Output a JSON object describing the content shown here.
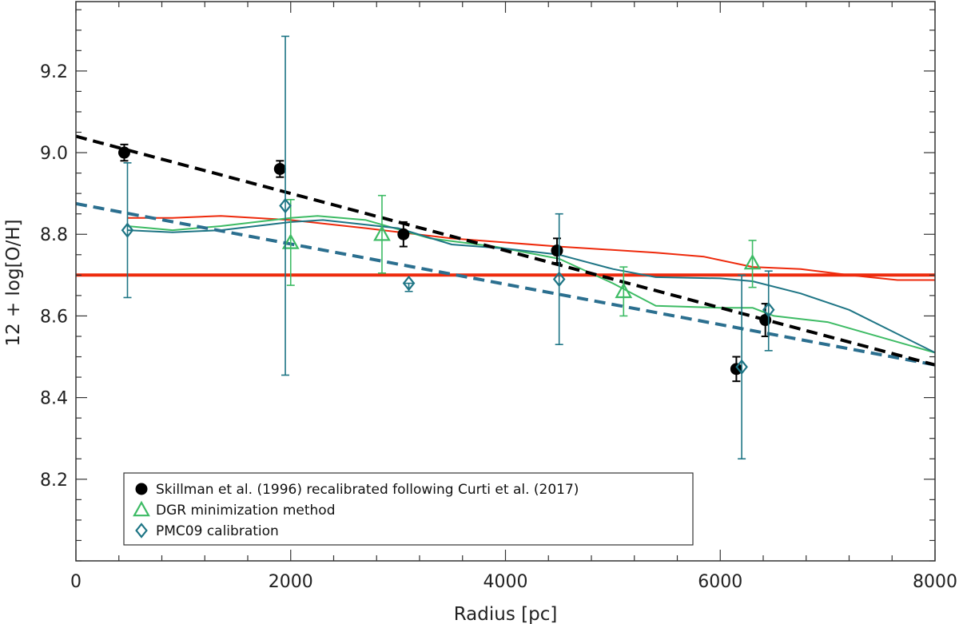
{
  "chart_data": {
    "type": "scatter",
    "xlabel": "Radius [pc]",
    "ylabel": "12 + log[O/H]",
    "xlim": [
      0,
      8000
    ],
    "ylim": [
      8.0,
      9.37
    ],
    "x_ticks": [
      0,
      2000,
      4000,
      6000,
      8000
    ],
    "x_tick_labels": [
      "0",
      "2000",
      "4000",
      "6000",
      "8000"
    ],
    "y_ticks": [
      8.2,
      8.4,
      8.6,
      8.8,
      9.0,
      9.2
    ],
    "y_tick_labels": [
      "8.2",
      "8.4",
      "8.6",
      "8.8",
      "9.0",
      "9.2"
    ],
    "legend_position": "bottom-left",
    "colors": {
      "black": "#000000",
      "green": "#3dbb64",
      "teal": "#1e7585",
      "red": "#ee2a0c",
      "dashed_blue": "#2b6f8f"
    },
    "series": [
      {
        "name": "Skillman et al. (1996) recalibrated following Curti et al. (2017)",
        "marker": "filled-circle",
        "color": "#000000",
        "points": [
          {
            "x": 450,
            "y": 9.0,
            "err": 0.02
          },
          {
            "x": 1900,
            "y": 8.96,
            "err": 0.02
          },
          {
            "x": 3050,
            "y": 8.8,
            "err": 0.03
          },
          {
            "x": 4480,
            "y": 8.76,
            "err": 0.03
          },
          {
            "x": 6150,
            "y": 8.47,
            "err": 0.03
          },
          {
            "x": 6420,
            "y": 8.59,
            "err": 0.04
          }
        ]
      },
      {
        "name": "DGR minimization method",
        "marker": "open-triangle",
        "color": "#3dbb64",
        "points": [
          {
            "x": 2000,
            "y": 8.78,
            "err_lo": 0.105,
            "err_hi": 0.105
          },
          {
            "x": 2850,
            "y": 8.8,
            "err_lo": 0.095,
            "err_hi": 0.095
          },
          {
            "x": 5100,
            "y": 8.66,
            "err_lo": 0.06,
            "err_hi": 0.06
          },
          {
            "x": 6300,
            "y": 8.73,
            "err_lo": 0.06,
            "err_hi": 0.055
          }
        ]
      },
      {
        "name": "PMC09 calibration",
        "marker": "open-diamond",
        "color": "#1e7585",
        "points": [
          {
            "x": 480,
            "y": 8.81,
            "err_lo": 0.165,
            "err_hi": 0.165
          },
          {
            "x": 1950,
            "y": 8.87,
            "err_lo": 0.415,
            "err_hi": 0.415
          },
          {
            "x": 3100,
            "y": 8.68,
            "err_lo": 0.02,
            "err_hi": 0.0
          },
          {
            "x": 4500,
            "y": 8.69,
            "err_lo": 0.16,
            "err_hi": 0.16
          },
          {
            "x": 6200,
            "y": 8.475,
            "err_lo": 0.225,
            "err_hi": 0.225
          },
          {
            "x": 6450,
            "y": 8.615,
            "err_lo": 0.1,
            "err_hi": 0.095
          }
        ]
      }
    ],
    "lines": [
      {
        "name": "black dashed fit",
        "color": "#000000",
        "style": "dashed",
        "width": 4,
        "x": [
          0,
          8000
        ],
        "y": [
          9.04,
          8.48
        ]
      },
      {
        "name": "blue dashed fit",
        "color": "#2b6f8f",
        "style": "dashed",
        "width": 4,
        "x": [
          0,
          8000
        ],
        "y": [
          8.875,
          8.48
        ]
      },
      {
        "name": "red constant",
        "color": "#ee2a0c",
        "style": "solid",
        "width": 4,
        "x": [
          0,
          8000
        ],
        "y": [
          8.7,
          8.7
        ]
      },
      {
        "name": "red profile",
        "color": "#ee2a0c",
        "style": "solid",
        "width": 2,
        "x": [
          480,
          900,
          1350,
          2000,
          2700,
          3500,
          4500,
          5400,
          5850,
          6300,
          6750,
          7200,
          7650,
          8000
        ],
        "y": [
          8.84,
          8.84,
          8.845,
          8.835,
          8.815,
          8.79,
          8.77,
          8.755,
          8.745,
          8.72,
          8.715,
          8.7,
          8.688,
          8.688
        ]
      },
      {
        "name": "green profile",
        "color": "#3dbb64",
        "style": "solid",
        "width": 2,
        "x": [
          480,
          900,
          1350,
          2000,
          2250,
          2700,
          3300,
          3900,
          4500,
          5000,
          5400,
          6000,
          6300,
          6500,
          7000,
          8000
        ],
        "y": [
          8.82,
          8.81,
          8.82,
          8.84,
          8.845,
          8.835,
          8.79,
          8.77,
          8.74,
          8.68,
          8.625,
          8.62,
          8.62,
          8.6,
          8.585,
          8.51
        ]
      },
      {
        "name": "teal profile",
        "color": "#1e7585",
        "style": "solid",
        "width": 2,
        "x": [
          480,
          900,
          1350,
          2000,
          2300,
          3000,
          3500,
          4000,
          4500,
          5000,
          5400,
          6000,
          6300,
          6750,
          7200,
          8000
        ],
        "y": [
          8.81,
          8.805,
          8.81,
          8.83,
          8.835,
          8.815,
          8.775,
          8.765,
          8.75,
          8.715,
          8.695,
          8.692,
          8.685,
          8.655,
          8.615,
          8.51
        ]
      }
    ]
  }
}
